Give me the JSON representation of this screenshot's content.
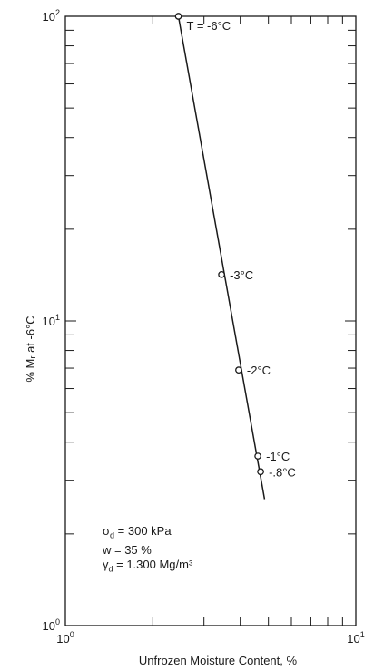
{
  "chart_data": {
    "type": "scatter",
    "x_scale": "log",
    "y_scale": "log",
    "xlim": [
      1,
      10
    ],
    "ylim": [
      1,
      100
    ],
    "xlabel": "Unfrozen Moisture Content,   %",
    "ylabel": "% Mᵣ at -6°C",
    "x_ticks": [
      {
        "base": "10",
        "exp": "0",
        "value": 1
      },
      {
        "base": "10",
        "exp": "1",
        "value": 10
      }
    ],
    "y_ticks": [
      {
        "base": "10",
        "exp": "0",
        "value": 1
      },
      {
        "base": "10",
        "exp": "1",
        "value": 10
      },
      {
        "base": "10",
        "exp": "2",
        "value": 100
      }
    ],
    "grid": false,
    "points": [
      {
        "x": 2.45,
        "y": 100,
        "label": "T = -6°C"
      },
      {
        "x": 3.45,
        "y": 14.2,
        "label": "-3°C"
      },
      {
        "x": 3.95,
        "y": 6.9,
        "label": "-2°C"
      },
      {
        "x": 4.6,
        "y": 3.6,
        "label": "-1°C"
      },
      {
        "x": 4.7,
        "y": 3.2,
        "label": "-.8°C"
      }
    ],
    "fit_line": {
      "x": [
        2.45,
        4.85
      ],
      "y": [
        100,
        2.6
      ]
    },
    "annotations": [
      {
        "symbol": "σ",
        "sub": "d",
        "text": " = 300 kPa"
      },
      {
        "symbol": "w",
        "sub": "",
        "text": " = 35 %"
      },
      {
        "symbol": "γ",
        "sub": "d",
        "text": " = 1.300 Mg/m³"
      }
    ]
  }
}
